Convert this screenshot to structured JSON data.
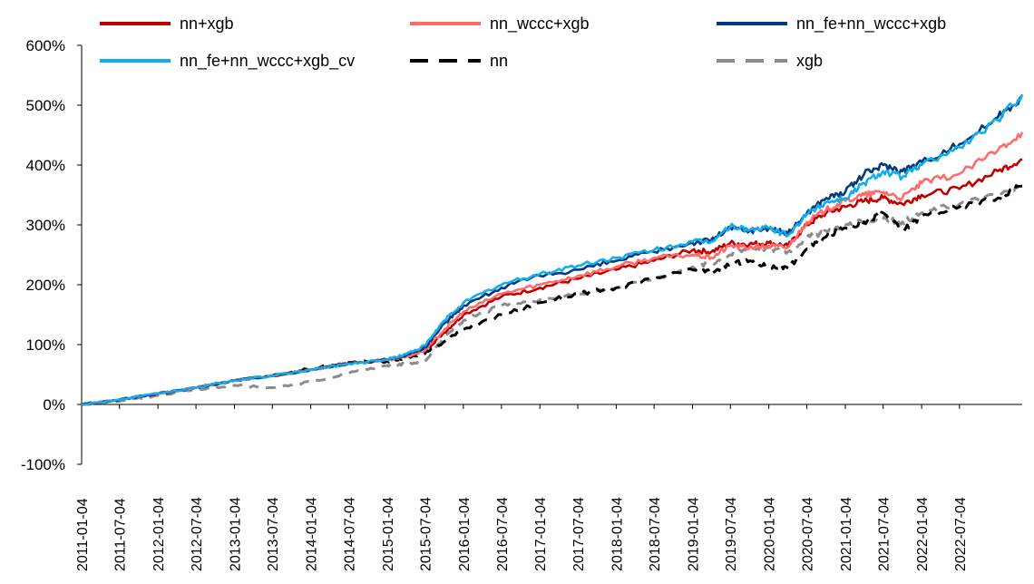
{
  "chart_data": {
    "type": "line",
    "title": "",
    "xlabel": "",
    "ylabel": "",
    "y_unit": "%",
    "ylim": [
      -100,
      600
    ],
    "yticks": [
      -100,
      0,
      100,
      200,
      300,
      400,
      500,
      600
    ],
    "ytick_labels": [
      "-100%",
      "0%",
      "100%",
      "200%",
      "300%",
      "400%",
      "500%",
      "600%"
    ],
    "xlim": [
      "2011-01-04",
      "2023-04-30"
    ],
    "xtick_labels": [
      "2011-01-04",
      "2011-07-04",
      "2012-01-04",
      "2012-07-04",
      "2013-01-04",
      "2013-07-04",
      "2014-01-04",
      "2014-07-04",
      "2015-01-04",
      "2015-07-04",
      "2016-01-04",
      "2016-07-04",
      "2017-01-04",
      "2017-07-04",
      "2018-01-04",
      "2018-07-04",
      "2019-01-04",
      "2019-07-04",
      "2020-01-04",
      "2020-07-04",
      "2021-01-04",
      "2021-07-04",
      "2022-01-04",
      "2022-07-04"
    ],
    "grid": false,
    "legend_position": "top",
    "x": [
      "2011-01-04",
      "2011-07-04",
      "2012-01-04",
      "2012-07-04",
      "2013-01-04",
      "2013-07-04",
      "2014-01-04",
      "2014-07-04",
      "2015-01-04",
      "2015-04-04",
      "2015-07-04",
      "2015-10-04",
      "2016-01-04",
      "2016-07-04",
      "2017-01-04",
      "2017-07-04",
      "2018-01-04",
      "2018-07-04",
      "2019-01-04",
      "2019-04-04",
      "2019-07-04",
      "2019-10-04",
      "2020-01-04",
      "2020-04-04",
      "2020-07-04",
      "2020-10-04",
      "2021-01-04",
      "2021-04-04",
      "2021-07-04",
      "2021-10-04",
      "2022-01-04",
      "2022-07-04",
      "2023-01-04",
      "2023-04-30"
    ],
    "series": [
      {
        "name": "nn+xgb",
        "color": "#C00000",
        "dash": "solid",
        "values": [
          0,
          8,
          18,
          28,
          40,
          48,
          58,
          68,
          75,
          80,
          90,
          120,
          150,
          180,
          195,
          210,
          225,
          240,
          258,
          255,
          270,
          268,
          270,
          265,
          300,
          320,
          330,
          340,
          345,
          335,
          350,
          360,
          390,
          410
        ]
      },
      {
        "name": "nn_wccc+xgb",
        "color": "#FF6B6B",
        "dash": "solid",
        "values": [
          0,
          8,
          18,
          28,
          40,
          48,
          58,
          68,
          75,
          80,
          90,
          125,
          155,
          185,
          200,
          215,
          230,
          245,
          250,
          245,
          265,
          262,
          265,
          262,
          305,
          325,
          340,
          350,
          355,
          345,
          370,
          385,
          425,
          455
        ]
      },
      {
        "name": "nn_fe+nn_wccc+xgb",
        "color": "#003A80",
        "dash": "solid",
        "values": [
          0,
          8,
          18,
          28,
          40,
          48,
          58,
          68,
          75,
          82,
          95,
          135,
          165,
          195,
          215,
          225,
          240,
          255,
          270,
          275,
          295,
          290,
          295,
          285,
          320,
          345,
          355,
          385,
          400,
          390,
          405,
          435,
          480,
          515
        ]
      },
      {
        "name": "nn_fe+nn_wccc+xgb_cv",
        "color": "#10AEEF",
        "dash": "solid",
        "values": [
          0,
          8,
          18,
          28,
          40,
          48,
          58,
          68,
          75,
          84,
          98,
          140,
          170,
          200,
          218,
          232,
          245,
          258,
          272,
          272,
          298,
          292,
          295,
          282,
          318,
          338,
          345,
          370,
          390,
          380,
          400,
          430,
          475,
          518
        ]
      },
      {
        "name": "nn",
        "color": "#000000",
        "dash": "long-dash",
        "values": [
          0,
          8,
          18,
          28,
          40,
          48,
          60,
          70,
          72,
          78,
          85,
          105,
          125,
          150,
          170,
          185,
          195,
          210,
          225,
          222,
          235,
          240,
          230,
          228,
          260,
          280,
          295,
          305,
          320,
          290,
          315,
          330,
          345,
          365
        ]
      },
      {
        "name": "xgb",
        "color": "#8C8C8C",
        "dash": "long-dash",
        "values": [
          0,
          5,
          15,
          25,
          32,
          28,
          38,
          52,
          65,
          68,
          72,
          112,
          140,
          165,
          175,
          185,
          195,
          210,
          230,
          235,
          250,
          262,
          260,
          255,
          278,
          290,
          300,
          305,
          310,
          305,
          320,
          335,
          350,
          365
        ]
      }
    ]
  }
}
